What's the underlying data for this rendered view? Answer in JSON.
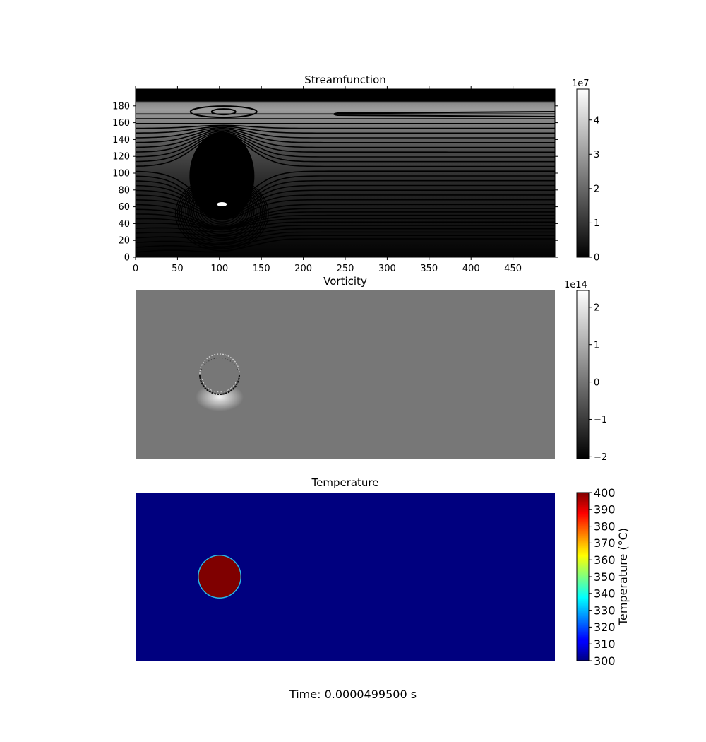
{
  "figure": {
    "time_label": "Time: 0.0000499500 s"
  },
  "chart_data": [
    {
      "type": "heatmap",
      "title": "Streamfunction",
      "colormap": "gray",
      "grid": false,
      "xlim": [
        0,
        500
      ],
      "ylim": [
        0,
        200
      ],
      "xticks": [
        0,
        50,
        100,
        150,
        200,
        250,
        300,
        350,
        400,
        450
      ],
      "yticks": [
        0,
        20,
        40,
        60,
        80,
        100,
        120,
        140,
        160,
        180
      ],
      "colorbar": {
        "min": 0,
        "max": 4.9,
        "ticks": [
          0,
          1,
          2,
          3,
          4
        ],
        "tick_labels": [
          "0",
          "1",
          "2",
          "3",
          "4"
        ],
        "scale_label": "1e7",
        "label": ""
      },
      "features": {
        "contour_lines": true,
        "body_center": [
          103,
          63
        ],
        "body_radius": 24
      }
    },
    {
      "type": "heatmap",
      "title": "Vorticity",
      "colormap": "gray",
      "grid": false,
      "xlim": [
        0,
        500
      ],
      "ylim": [
        0,
        200
      ],
      "colorbar": {
        "min": -2.05,
        "max": 2.45,
        "ticks": [
          -2,
          -1,
          0,
          1,
          2
        ],
        "tick_labels": [
          "−2",
          "−1",
          "0",
          "1",
          "2"
        ],
        "scale_label": "1e14",
        "label": ""
      },
      "features": {
        "body_center": [
          100,
          100
        ],
        "body_radius": 24
      }
    },
    {
      "type": "heatmap",
      "title": "Temperature",
      "colormap": "jet",
      "grid": false,
      "xlim": [
        0,
        500
      ],
      "ylim": [
        0,
        200
      ],
      "background_value": 300,
      "body_value": 400,
      "colorbar": {
        "min": 300,
        "max": 400,
        "ticks": [
          300,
          310,
          320,
          330,
          340,
          350,
          360,
          370,
          380,
          390,
          400
        ],
        "tick_labels": [
          "300",
          "310",
          "320",
          "330",
          "340",
          "350",
          "360",
          "370",
          "380",
          "390",
          "400"
        ],
        "scale_label": "",
        "label": "Temperature (°C)"
      },
      "features": {
        "body_center": [
          100,
          100
        ],
        "body_radius": 25
      }
    }
  ]
}
